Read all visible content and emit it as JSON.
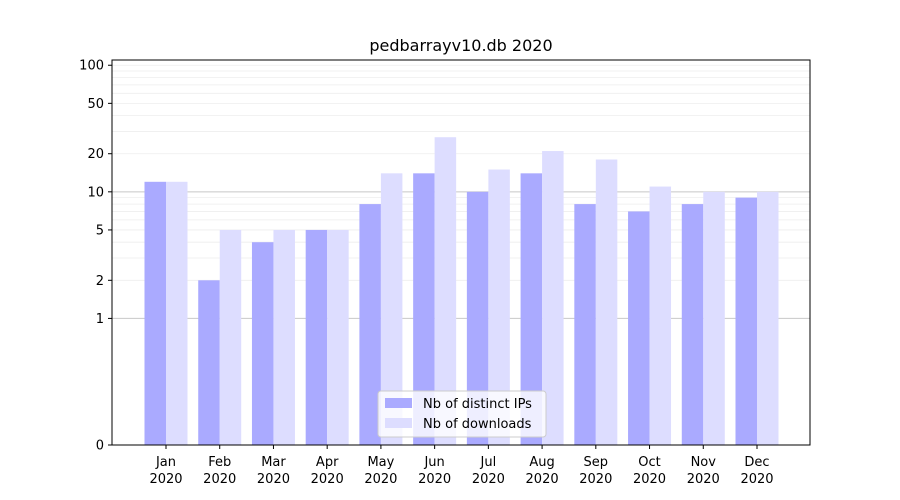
{
  "chart_data": {
    "type": "bar",
    "title": "pedbarrayv10.db 2020",
    "xlabel": "",
    "ylabel": "",
    "yscale": "symlog",
    "ylim": [
      0,
      110
    ],
    "yticks": [
      0,
      1,
      2,
      5,
      10,
      20,
      50,
      100
    ],
    "categories": [
      [
        "Jan",
        "2020"
      ],
      [
        "Feb",
        "2020"
      ],
      [
        "Mar",
        "2020"
      ],
      [
        "Apr",
        "2020"
      ],
      [
        "May",
        "2020"
      ],
      [
        "Jun",
        "2020"
      ],
      [
        "Jul",
        "2020"
      ],
      [
        "Aug",
        "2020"
      ],
      [
        "Sep",
        "2020"
      ],
      [
        "Oct",
        "2020"
      ],
      [
        "Nov",
        "2020"
      ],
      [
        "Dec",
        "2020"
      ]
    ],
    "series": [
      {
        "name": "Nb of distinct IPs",
        "color": "#aaaaff",
        "values": [
          12,
          2,
          4,
          5,
          8,
          14,
          10,
          14,
          8,
          7,
          8,
          9
        ]
      },
      {
        "name": "Nb of downloads",
        "color": "#ddddff",
        "values": [
          12,
          5,
          5,
          5,
          14,
          27,
          15,
          21,
          18,
          11,
          10,
          10
        ]
      }
    ],
    "grid": true,
    "legend_position": "lower-center"
  }
}
